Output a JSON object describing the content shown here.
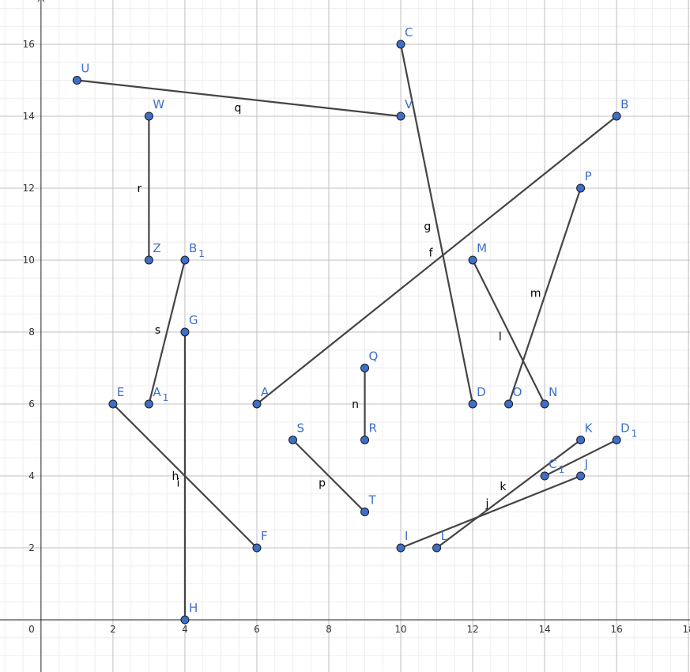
{
  "chart_data": {
    "type": "geometry",
    "xlim": [
      -1.14,
      18.04
    ],
    "ylim": [
      -1.45,
      17.23
    ],
    "xticks": [
      0,
      2,
      4,
      6,
      8,
      10,
      12,
      14,
      16,
      18
    ],
    "yticks": [
      2,
      4,
      6,
      8,
      10,
      12,
      14,
      16
    ],
    "grid": true,
    "minor_grid": 0.5,
    "point_color": "#3d6fc9",
    "segment_color": "#444444",
    "points": [
      {
        "label": "U",
        "x": 1,
        "y": 15
      },
      {
        "label": "W",
        "x": 3,
        "y": 14
      },
      {
        "label": "V",
        "x": 10,
        "y": 14
      },
      {
        "label": "C",
        "x": 10,
        "y": 16
      },
      {
        "label": "B",
        "x": 16,
        "y": 14
      },
      {
        "label": "P",
        "x": 15,
        "y": 12
      },
      {
        "label": "Z",
        "x": 3,
        "y": 10
      },
      {
        "label": "B",
        "sub": "1",
        "x": 4,
        "y": 10
      },
      {
        "label": "M",
        "x": 12,
        "y": 10
      },
      {
        "label": "G",
        "x": 4,
        "y": 8
      },
      {
        "label": "Q",
        "x": 9,
        "y": 7
      },
      {
        "label": "E",
        "x": 2,
        "y": 6
      },
      {
        "label": "A",
        "sub": "1",
        "x": 3,
        "y": 6
      },
      {
        "label": "A",
        "x": 6,
        "y": 6
      },
      {
        "label": "D",
        "x": 12,
        "y": 6
      },
      {
        "label": "O",
        "x": 13,
        "y": 6
      },
      {
        "label": "N",
        "x": 14,
        "y": 6
      },
      {
        "label": "S",
        "x": 7,
        "y": 5
      },
      {
        "label": "R",
        "x": 9,
        "y": 5
      },
      {
        "label": "K",
        "x": 15,
        "y": 5
      },
      {
        "label": "D",
        "sub": "1",
        "x": 16,
        "y": 5
      },
      {
        "label": "C",
        "sub": "1",
        "x": 14,
        "y": 4
      },
      {
        "label": "J",
        "x": 15,
        "y": 4
      },
      {
        "label": "T",
        "x": 9,
        "y": 3
      },
      {
        "label": "F",
        "x": 6,
        "y": 2
      },
      {
        "label": "I",
        "x": 10,
        "y": 2
      },
      {
        "label": "L",
        "x": 11,
        "y": 2
      },
      {
        "label": "H",
        "x": 4,
        "y": 0
      }
    ],
    "segments": [
      {
        "name": "q",
        "from": 0,
        "to": 2
      },
      {
        "name": "r",
        "from": 1,
        "to": 6
      },
      {
        "name": "g",
        "from": 3,
        "to": 14
      },
      {
        "name": "f",
        "from": 13,
        "to": 4
      },
      {
        "name": "m",
        "from": 5,
        "to": 15
      },
      {
        "name": "l",
        "from": 8,
        "to": 16
      },
      {
        "name": "s",
        "from": 7,
        "to": 12
      },
      {
        "name": "h",
        "from": 9,
        "to": 27
      },
      {
        "name": "i",
        "from": 11,
        "to": 24
      },
      {
        "name": "n",
        "from": 10,
        "to": 18
      },
      {
        "name": "p",
        "from": 17,
        "to": 23
      },
      {
        "name": "k",
        "from": 26,
        "to": 19
      },
      {
        "name": "j",
        "from": 25,
        "to": 22
      },
      {
        "from": 21,
        "to": 20
      }
    ]
  }
}
